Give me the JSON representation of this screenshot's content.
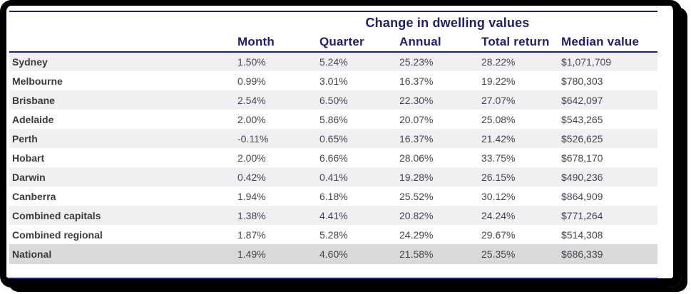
{
  "chart_data": {
    "type": "table",
    "title": "Change in dwelling values",
    "row_header": "",
    "columns": [
      "Month",
      "Quarter",
      "Annual",
      "Total return",
      "Median value"
    ],
    "rows": [
      [
        "Sydney",
        "1.50%",
        "5.24%",
        "25.23%",
        "28.22%",
        "$1,071,709"
      ],
      [
        "Melbourne",
        "0.99%",
        "3.01%",
        "16.37%",
        "19.22%",
        "$780,303"
      ],
      [
        "Brisbane",
        "2.54%",
        "6.50%",
        "22.30%",
        "27.07%",
        "$642,097"
      ],
      [
        "Adelaide",
        "2.00%",
        "5.86%",
        "20.07%",
        "25.08%",
        "$543,265"
      ],
      [
        "Perth",
        "-0.11%",
        "0.65%",
        "16.37%",
        "21.42%",
        "$526,625"
      ],
      [
        "Hobart",
        "2.00%",
        "6.66%",
        "28.06%",
        "33.75%",
        "$678,170"
      ],
      [
        "Darwin",
        "0.42%",
        "0.41%",
        "19.28%",
        "26.15%",
        "$490,236"
      ],
      [
        "Canberra",
        "1.94%",
        "6.18%",
        "25.52%",
        "30.12%",
        "$864,909"
      ],
      [
        "Combined capitals",
        "1.38%",
        "4.41%",
        "20.82%",
        "24.24%",
        "$771,264"
      ],
      [
        "Combined regional",
        "1.87%",
        "5.28%",
        "24.29%",
        "29.67%",
        "$514,308"
      ],
      [
        "National",
        "1.49%",
        "4.60%",
        "21.58%",
        "25.35%",
        "$686,339"
      ]
    ],
    "layout": {
      "striped": true,
      "stripe_on_odd_rows": true,
      "total_row": "National",
      "legend": "none",
      "grid": "horizontal-rules-only"
    }
  },
  "colors": {
    "accent_navy": "#211d70",
    "stripe_bg": "#f0f0f3",
    "total_row_bg": "#d9d9d9",
    "label_text": "#3b3b3b",
    "value_text": "#43464c",
    "frame_border": "#000000",
    "background": "#ffffff"
  }
}
